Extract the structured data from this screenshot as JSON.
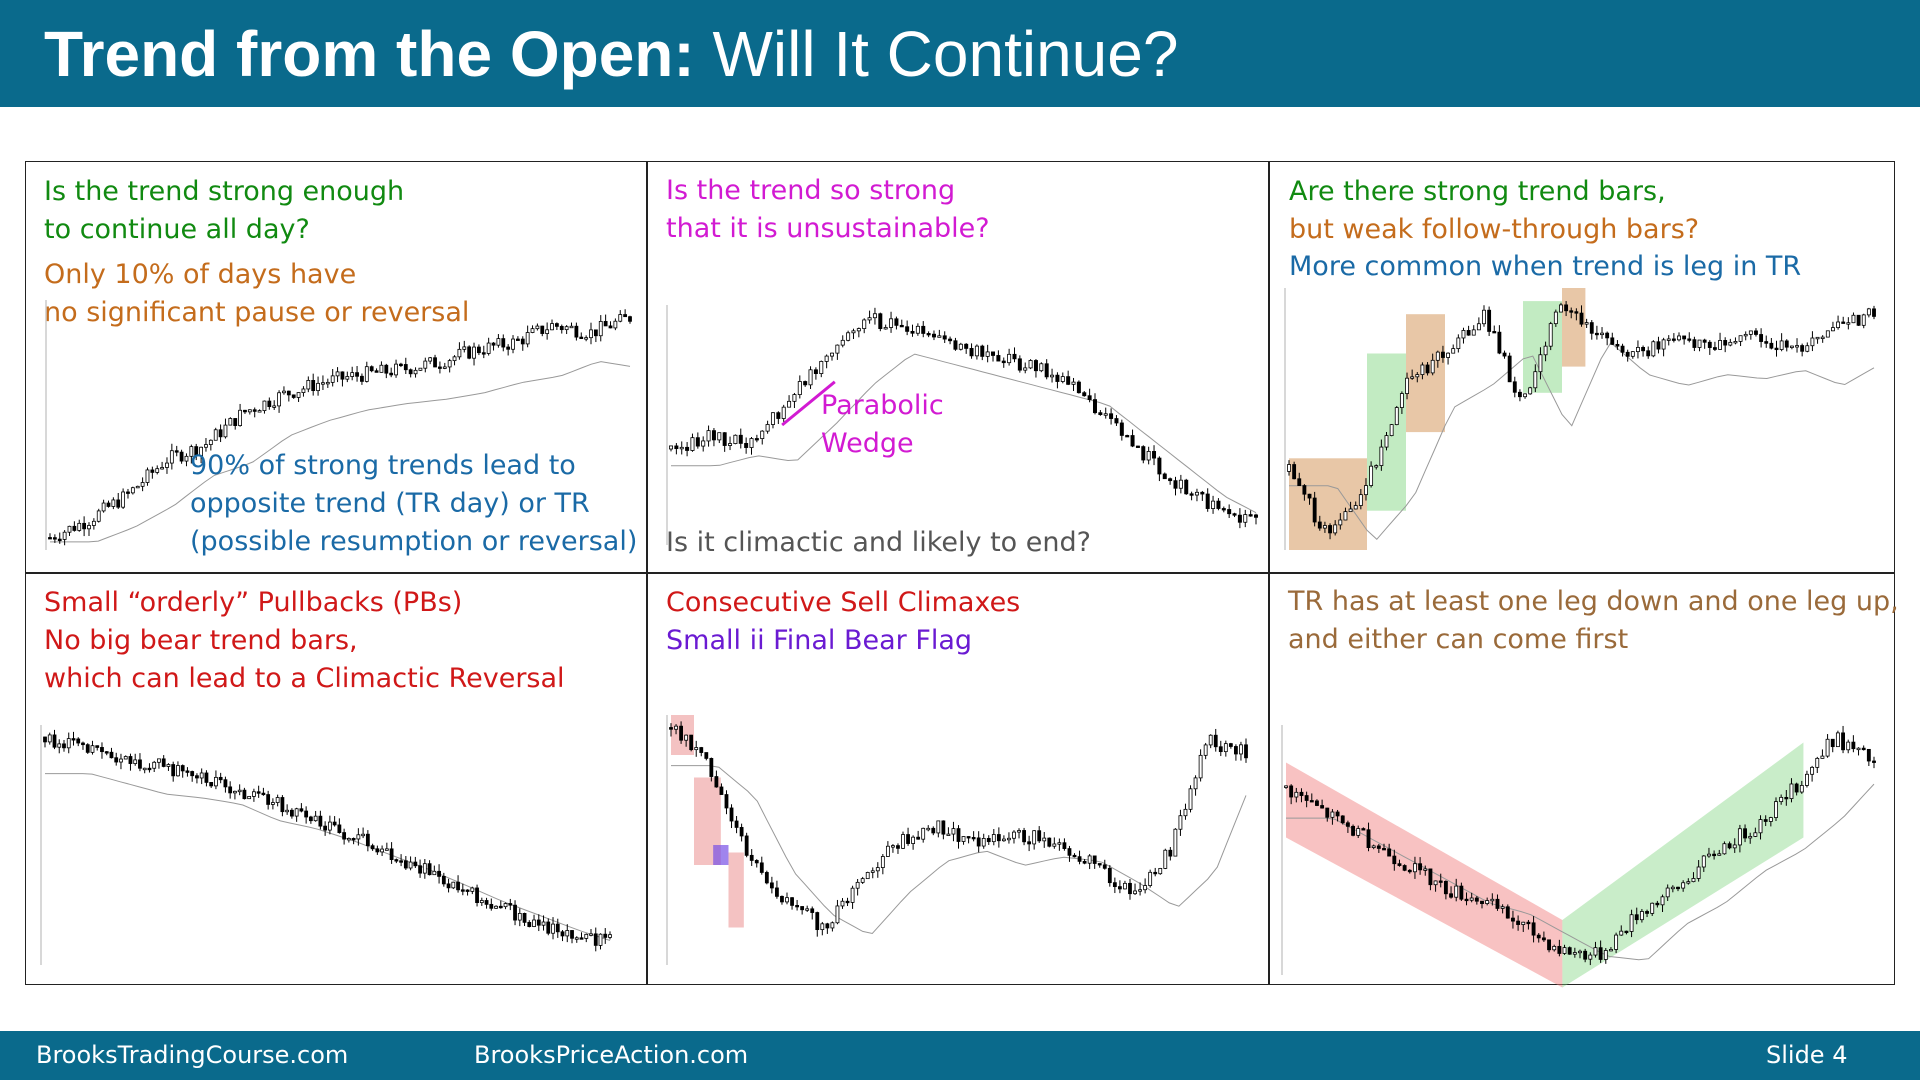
{
  "header": {
    "title_bold": "Trend from the Open:",
    "title_rest": "Will It Continue?"
  },
  "panels": {
    "p1": {
      "line1": "Is the trend strong enough",
      "line2": "to continue all day?",
      "line3": "Only 10% of days have",
      "line4": "no significant pause or reversal",
      "line5": "90% of strong trends lead to",
      "line6": "opposite trend (TR day) or TR",
      "line7": "(possible resumption or reversal)"
    },
    "p2": {
      "line1": "Is the trend so strong",
      "line2": "that it is unsustainable?",
      "label1": "Parabolic",
      "label2": "Wedge",
      "line3": "Is it climactic and likely to end?"
    },
    "p3": {
      "line1": "Are there strong trend bars,",
      "line2": "but weak follow-through bars?",
      "line3": "More common when trend is leg in TR"
    },
    "p4": {
      "line1": "Small “orderly” Pullbacks (PBs)",
      "line2": "No big bear trend bars,",
      "line3": "which can lead to a Climactic Reversal"
    },
    "p5": {
      "line1": "Consecutive Sell Climaxes",
      "line2": "Small ii Final Bear Flag"
    },
    "p6": {
      "line1": "TR has at least one leg down and one leg up,",
      "line2": "and either can come first"
    }
  },
  "footer": {
    "site1": "BrooksTradingCourse.com",
    "site2": "BrooksPriceAction.com",
    "slide": "Slide  4"
  },
  "colors": {
    "header_bg": "#0a6a8c",
    "green": "#118a11",
    "orange": "#c46c1c",
    "blue": "#1a6aa6",
    "magenta": "#d21ad2",
    "red": "#d01818",
    "purple": "#6a1ad2",
    "brown": "#9a6a3a"
  },
  "chart_data": [
    {
      "type": "candlestick",
      "panel": "p1",
      "trend": "bull trend from the open",
      "points": [
        0.05,
        0.12,
        0.22,
        0.36,
        0.42,
        0.55,
        0.62,
        0.67,
        0.7,
        0.72,
        0.75,
        0.8,
        0.83,
        0.9,
        0.87,
        0.93
      ]
    },
    {
      "type": "candlestick",
      "panel": "p2",
      "trend": "bull spike then bear trend",
      "points": [
        0.4,
        0.45,
        0.42,
        0.6,
        0.8,
        0.95,
        0.9,
        0.85,
        0.8,
        0.75,
        0.7,
        0.55,
        0.4,
        0.25,
        0.15,
        0.1
      ]
    },
    {
      "type": "candlestick",
      "panel": "p3",
      "trend": "strong bull bars then trading range",
      "points": [
        0.3,
        0.05,
        0.25,
        0.65,
        0.75,
        0.9,
        0.55,
        0.95,
        0.8,
        0.75,
        0.8,
        0.78,
        0.82,
        0.75,
        0.85,
        0.9
      ]
    },
    {
      "type": "candlestick",
      "panel": "p4",
      "trend": "orderly bear trend",
      "points": [
        0.95,
        0.9,
        0.85,
        0.83,
        0.8,
        0.72,
        0.68,
        0.62,
        0.55,
        0.48,
        0.4,
        0.32,
        0.25,
        0.18,
        0.12,
        0.1
      ]
    },
    {
      "type": "candlestick",
      "panel": "p5",
      "trend": "sell climaxes then reversal up",
      "points": [
        0.95,
        0.8,
        0.45,
        0.25,
        0.15,
        0.35,
        0.5,
        0.55,
        0.48,
        0.52,
        0.5,
        0.4,
        0.28,
        0.45,
        0.9,
        0.85
      ]
    },
    {
      "type": "candlestick",
      "panel": "p6",
      "trend": "leg down then leg up",
      "points": [
        0.75,
        0.65,
        0.55,
        0.45,
        0.35,
        0.3,
        0.2,
        0.1,
        0.08,
        0.25,
        0.35,
        0.5,
        0.6,
        0.75,
        0.95,
        0.85
      ]
    }
  ]
}
